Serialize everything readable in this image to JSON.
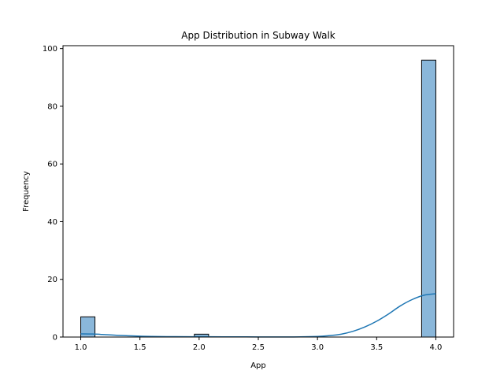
{
  "chart_data": {
    "type": "bar",
    "title": "App Distribution in Subway Walk",
    "xlabel": "App",
    "ylabel": "Frequency",
    "xlim": [
      0.85,
      4.15
    ],
    "ylim": [
      0,
      101
    ],
    "xticks": [
      "1.0",
      "1.5",
      "2.0",
      "2.5",
      "3.0",
      "3.5",
      "4.0"
    ],
    "yticks": [
      "0",
      "20",
      "40",
      "60",
      "80",
      "100"
    ],
    "grid": false,
    "bar_color": "#8ab7da",
    "edge_color": "#000000",
    "kde_color": "#1f77b4",
    "bins": [
      {
        "x0": 1.0,
        "x1": 1.12,
        "count": 7
      },
      {
        "x0": 1.96,
        "x1": 2.08,
        "count": 1
      },
      {
        "x0": 3.88,
        "x1": 4.0,
        "count": 96
      }
    ],
    "kde": {
      "x": [
        1.0,
        1.1,
        1.2,
        1.3,
        1.4,
        1.5,
        1.6,
        1.8,
        2.0,
        2.2,
        2.5,
        2.8,
        3.0,
        3.1,
        3.2,
        3.3,
        3.4,
        3.5,
        3.6,
        3.7,
        3.8,
        3.9,
        4.0
      ],
      "y": [
        1.1,
        1.05,
        0.85,
        0.6,
        0.45,
        0.3,
        0.2,
        0.12,
        0.1,
        0.08,
        0.05,
        0.05,
        0.2,
        0.5,
        1.0,
        2.0,
        3.5,
        5.5,
        8.0,
        10.8,
        13.0,
        14.5,
        15.0
      ]
    }
  }
}
